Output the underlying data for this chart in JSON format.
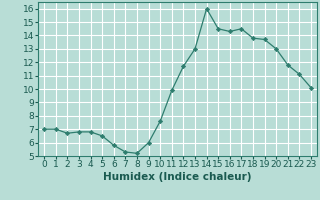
{
  "x": [
    0,
    1,
    2,
    3,
    4,
    5,
    6,
    7,
    8,
    9,
    10,
    11,
    12,
    13,
    14,
    15,
    16,
    17,
    18,
    19,
    20,
    21,
    22,
    23
  ],
  "y": [
    7.0,
    7.0,
    6.7,
    6.8,
    6.8,
    6.5,
    5.8,
    5.3,
    5.2,
    6.0,
    7.6,
    9.9,
    11.7,
    13.0,
    16.0,
    14.5,
    14.3,
    14.5,
    13.8,
    13.7,
    13.0,
    11.8,
    11.1,
    10.1
  ],
  "xlabel": "Humidex (Indice chaleur)",
  "xlim": [
    -0.5,
    23.5
  ],
  "ylim": [
    5,
    16.5
  ],
  "yticks": [
    5,
    6,
    7,
    8,
    9,
    10,
    11,
    12,
    13,
    14,
    15,
    16
  ],
  "xticks": [
    0,
    1,
    2,
    3,
    4,
    5,
    6,
    7,
    8,
    9,
    10,
    11,
    12,
    13,
    14,
    15,
    16,
    17,
    18,
    19,
    20,
    21,
    22,
    23
  ],
  "line_color": "#2e7d6e",
  "marker_color": "#2e7d6e",
  "bg_color": "#b8ddd6",
  "grid_color": "#ffffff",
  "label_fontsize": 7.5,
  "tick_fontsize": 6.5
}
